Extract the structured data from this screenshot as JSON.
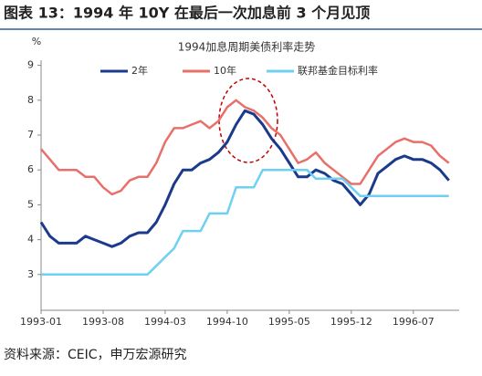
{
  "title": "图表 13：1994 年 10Y 在最后一次加息前 3 个月见顶",
  "source": "资料来源：CEIC，申万宏源研究",
  "chart_data": {
    "type": "line",
    "title": "1994加息周期美债利率走势",
    "y_unit": "%",
    "categories": [
      "1993-01",
      null,
      null,
      null,
      null,
      null,
      null,
      "1993-08",
      null,
      null,
      null,
      null,
      null,
      null,
      "1994-03",
      null,
      null,
      null,
      null,
      null,
      null,
      "1994-10",
      null,
      null,
      null,
      null,
      null,
      null,
      "1995-05",
      null,
      null,
      null,
      null,
      null,
      null,
      "1995-12",
      null,
      null,
      null,
      null,
      null,
      null,
      "1996-07",
      null,
      null,
      null,
      null
    ],
    "series": [
      {
        "name": "2年",
        "color": "#1b3a8c",
        "width": 3,
        "values": [
          4.5,
          4.1,
          3.9,
          3.9,
          3.9,
          4.1,
          4.0,
          3.9,
          3.8,
          3.9,
          4.1,
          4.2,
          4.2,
          4.5,
          5.0,
          5.6,
          6.0,
          6.0,
          6.2,
          6.3,
          6.5,
          6.8,
          7.3,
          7.7,
          7.6,
          7.3,
          6.9,
          6.6,
          6.2,
          5.8,
          5.8,
          6.0,
          5.9,
          5.7,
          5.6,
          5.3,
          5.0,
          5.3,
          5.9,
          6.1,
          6.3,
          6.4,
          6.3,
          6.3,
          6.2,
          6.0,
          5.7
        ]
      },
      {
        "name": "10年",
        "color": "#e8706a",
        "width": 2.5,
        "values": [
          6.6,
          6.3,
          6.0,
          6.0,
          6.0,
          5.8,
          5.8,
          5.5,
          5.3,
          5.4,
          5.7,
          5.8,
          5.8,
          6.2,
          6.8,
          7.2,
          7.2,
          7.3,
          7.4,
          7.2,
          7.4,
          7.8,
          8.0,
          7.8,
          7.7,
          7.5,
          7.2,
          7.0,
          6.6,
          6.2,
          6.3,
          6.5,
          6.2,
          6.0,
          5.8,
          5.6,
          5.6,
          6.0,
          6.4,
          6.6,
          6.8,
          6.9,
          6.8,
          6.8,
          6.7,
          6.4,
          6.2
        ]
      },
      {
        "name": "联邦基金目标利率",
        "color": "#6fd0f2",
        "width": 2.5,
        "values": [
          3.0,
          3.0,
          3.0,
          3.0,
          3.0,
          3.0,
          3.0,
          3.0,
          3.0,
          3.0,
          3.0,
          3.0,
          3.0,
          3.25,
          3.5,
          3.75,
          4.25,
          4.25,
          4.25,
          4.75,
          4.75,
          4.75,
          5.5,
          5.5,
          5.5,
          6.0,
          6.0,
          6.0,
          6.0,
          6.0,
          6.0,
          5.75,
          5.75,
          5.75,
          5.75,
          5.5,
          5.25,
          5.25,
          5.25,
          5.25,
          5.25,
          5.25,
          5.25,
          5.25,
          5.25,
          5.25,
          5.25
        ]
      }
    ],
    "ylim": [
      2,
      9
    ],
    "yticks": [
      3,
      4,
      5,
      6,
      7,
      8,
      9
    ],
    "legend": "top"
  }
}
